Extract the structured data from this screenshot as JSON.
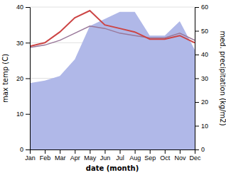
{
  "chart_data": {
    "type": "line",
    "x_label": "date (month)",
    "y_label": "max temp (C)",
    "y2_label": "med. precipitation (kg/m2)",
    "categories": [
      "Jan",
      "Feb",
      "Mar",
      "Apr",
      "May",
      "Jun",
      "Jul",
      "Aug",
      "Sep",
      "Oct",
      "Nov",
      "Dec"
    ],
    "series": [
      {
        "type": "area",
        "axis": "y2",
        "color": "#b0b8e8",
        "values": [
          28,
          29,
          31,
          38,
          52,
          55,
          58,
          58,
          48,
          48,
          54,
          42
        ]
      },
      {
        "type": "line",
        "axis": "y2",
        "color": "#997799",
        "values": [
          43,
          44,
          46,
          49,
          52,
          51,
          49,
          48,
          47,
          47,
          49,
          46
        ]
      },
      {
        "type": "line",
        "axis": "y",
        "color": "#cc4444",
        "values": [
          29,
          30,
          33,
          37,
          39,
          35,
          34,
          33,
          31,
          31,
          32,
          30
        ]
      }
    ],
    "ylim": [
      0,
      40
    ],
    "yticks": [
      0,
      10,
      20,
      30,
      40
    ],
    "y2lim": [
      0,
      60
    ],
    "y2ticks": [
      0,
      10,
      20,
      30,
      40,
      50,
      60
    ],
    "grid": true
  }
}
